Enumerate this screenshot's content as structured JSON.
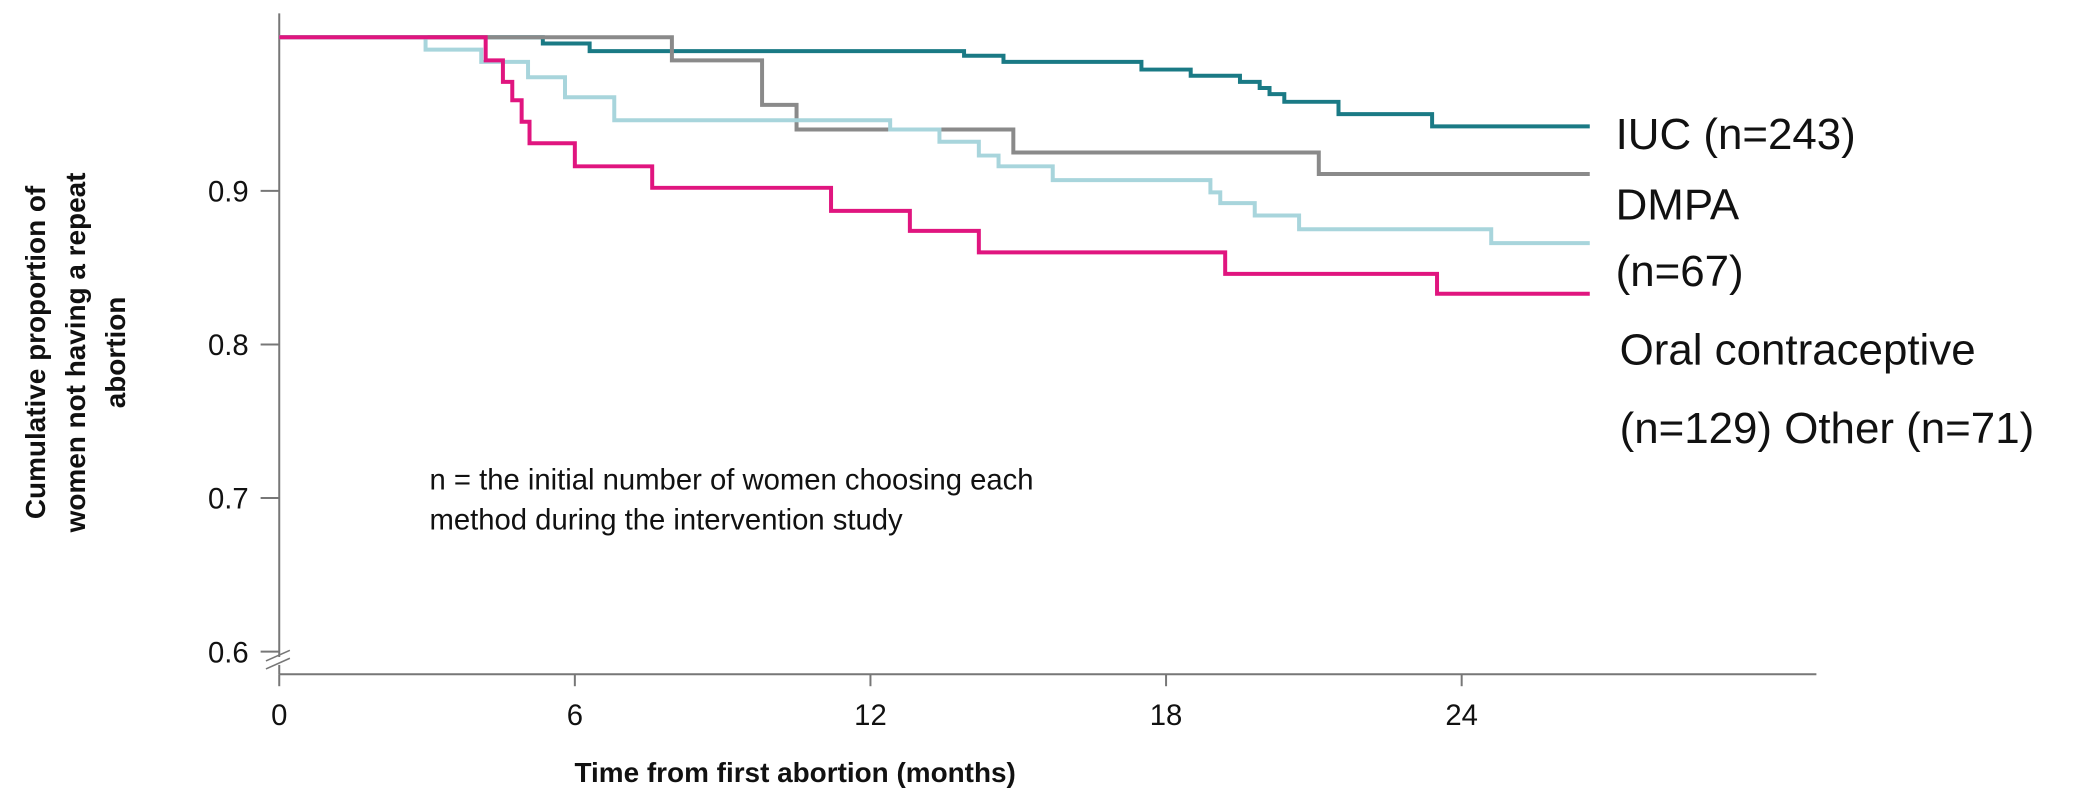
{
  "chart_data": {
    "type": "step",
    "xlabel": "Time from first abortion (months)",
    "ylabel_lines": [
      "Cumulative proportion of",
      "women  not having a repeat",
      "abortion"
    ],
    "annotation_lines": [
      "n = the initial number of women choosing  each",
      "method during the intervention study"
    ],
    "legend_lines": [
      "IUC (n=243)",
      "DMPA",
      "(n=67)",
      "Oral contraceptive",
      "(n=129)  Other (n=71)"
    ],
    "xlim": [
      0,
      31.2
    ],
    "xticks": [
      0,
      6,
      12,
      18,
      24
    ],
    "ylim": [
      0.6,
      1.0
    ],
    "yticks": [
      0.6,
      0.7,
      0.8,
      0.9
    ],
    "series": [
      {
        "color": "#1a7a85",
        "x": [
          0,
          5.35,
          6.3,
          13.9,
          14.7,
          17.5,
          18.5,
          19.5,
          19.9,
          20.1,
          20.4,
          21.5,
          23.4,
          26.6
        ],
        "values": [
          1.0,
          0.996,
          0.991,
          0.988,
          0.984,
          0.979,
          0.975,
          0.971,
          0.967,
          0.963,
          0.958,
          0.95,
          0.942,
          0.942
        ]
      },
      {
        "color": "#8a8a8a",
        "x": [
          0,
          7.97,
          9.8,
          10.5,
          14.9,
          21.1,
          26.6
        ],
        "values": [
          1.0,
          0.985,
          0.956,
          0.94,
          0.925,
          0.911,
          0.911
        ]
      },
      {
        "color": "#a8d5dc",
        "x": [
          0,
          2.97,
          4.1,
          5.05,
          5.8,
          6.8,
          12.4,
          13.4,
          14.2,
          14.6,
          15.7,
          18.9,
          19.1,
          19.8,
          20.7,
          24.6,
          26.6
        ],
        "values": [
          1.0,
          0.992,
          0.984,
          0.974,
          0.961,
          0.946,
          0.94,
          0.932,
          0.923,
          0.916,
          0.907,
          0.899,
          0.892,
          0.884,
          0.875,
          0.866,
          0.866
        ]
      },
      {
        "color": "#e0157f",
        "x": [
          0,
          4.19,
          4.54,
          4.73,
          4.92,
          5.08,
          6.0,
          7.57,
          11.2,
          12.8,
          14.2,
          19.2,
          23.5,
          26.6
        ],
        "values": [
          1.0,
          0.985,
          0.971,
          0.959,
          0.945,
          0.931,
          0.916,
          0.902,
          0.887,
          0.874,
          0.86,
          0.846,
          0.833,
          0.833
        ]
      }
    ]
  }
}
